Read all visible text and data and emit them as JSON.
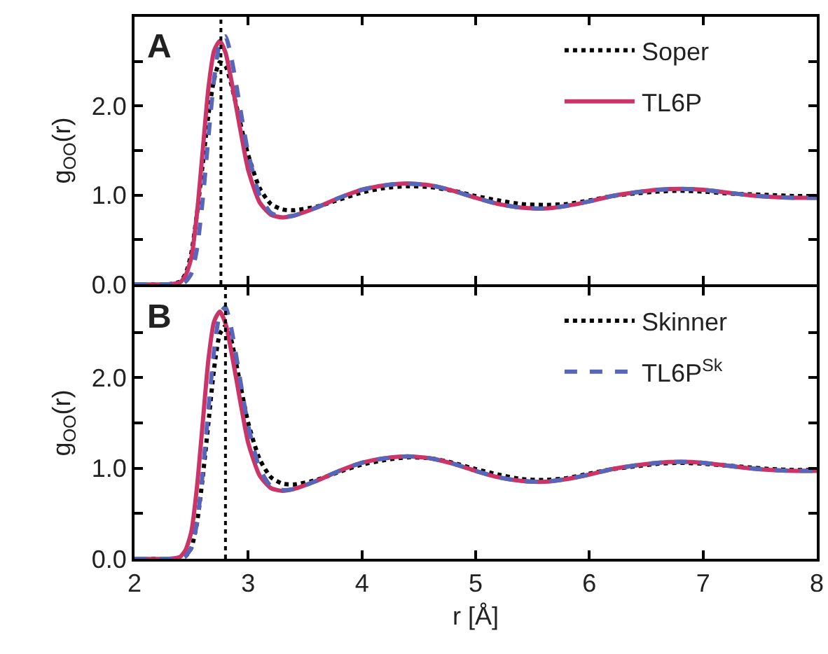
{
  "chart_data": [
    {
      "type": "line",
      "ylabel": "g$_{OO}$(r)",
      "annotations": [
        "A"
      ],
      "legend": "top right",
      "grid": false,
      "marker": "none",
      "tick_labels": "y",
      "x": [
        2.0,
        2.3,
        2.4,
        2.45,
        2.5,
        2.55,
        2.6,
        2.65,
        2.7,
        2.75,
        2.8,
        2.85,
        2.9,
        2.95,
        3.0,
        3.1,
        3.2,
        3.3,
        3.4,
        3.6,
        3.8,
        4.0,
        4.2,
        4.4,
        4.6,
        4.8,
        5.0,
        5.2,
        5.4,
        5.6,
        5.8,
        6.0,
        6.2,
        6.4,
        6.6,
        6.8,
        7.0,
        7.2,
        7.4,
        7.6,
        7.8,
        8.0
      ],
      "xlim": [
        2,
        8
      ],
      "xticks": [
        2,
        3,
        4,
        5,
        6,
        7,
        8
      ],
      "ylim": [
        0,
        3
      ],
      "yticks": [
        {
          "value": 0,
          "label": "0.0"
        },
        {
          "value": 0.5,
          "label": null
        },
        {
          "value": 1,
          "label": "1.0"
        },
        {
          "value": 1.5,
          "label": null
        },
        {
          "value": 2,
          "label": "2.0"
        },
        {
          "value": 2.5,
          "label": null
        },
        {
          "value": 3,
          "label": null
        }
      ],
      "ref_lines": [
        {
          "axis": "x",
          "value": 2.76,
          "label": null,
          "color": "#000000",
          "line_style": "dotted"
        }
      ],
      "series": [
        {
          "name": "Soper",
          "color": "#000000",
          "line_style": "dotted",
          "values": [
            0,
            0,
            0.03,
            0.12,
            0.35,
            0.8,
            1.35,
            1.9,
            2.3,
            2.49,
            2.45,
            2.25,
            1.98,
            1.7,
            1.45,
            1.08,
            0.9,
            0.84,
            0.83,
            0.87,
            0.95,
            1.03,
            1.08,
            1.1,
            1.09,
            1.05,
            0.99,
            0.94,
            0.9,
            0.89,
            0.9,
            0.94,
            0.99,
            1.02,
            1.04,
            1.05,
            1.04,
            1.02,
            1.01,
            1.0,
            0.99,
            0.99
          ]
        },
        {
          "name": "TL6P",
          "color": "#cc3366",
          "line_style": "solid",
          "values": [
            0,
            0,
            0.02,
            0.1,
            0.3,
            0.8,
            1.5,
            2.2,
            2.62,
            2.73,
            2.6,
            2.3,
            1.95,
            1.6,
            1.28,
            0.92,
            0.78,
            0.75,
            0.77,
            0.86,
            0.97,
            1.06,
            1.11,
            1.13,
            1.11,
            1.05,
            0.97,
            0.9,
            0.86,
            0.85,
            0.88,
            0.93,
            0.99,
            1.03,
            1.06,
            1.07,
            1.06,
            1.03,
            1.0,
            0.98,
            0.97,
            0.97
          ]
        },
        {
          "color": "#5566bb",
          "line_style": "dashed",
          "values": [
            0,
            0,
            0,
            0.03,
            0.12,
            0.4,
            0.95,
            1.65,
            2.3,
            2.7,
            2.78,
            2.55,
            2.2,
            1.82,
            1.47,
            1.0,
            0.8,
            0.76,
            0.77,
            0.86,
            0.97,
            1.06,
            1.11,
            1.13,
            1.11,
            1.05,
            0.97,
            0.9,
            0.86,
            0.85,
            0.88,
            0.93,
            0.99,
            1.03,
            1.06,
            1.07,
            1.06,
            1.03,
            1.0,
            0.98,
            0.97,
            0.97
          ]
        }
      ]
    },
    {
      "type": "line",
      "ylabel": "g$_{OO}$(r)",
      "xlabel": "r [Å]",
      "annotations": [
        "B"
      ],
      "legend": "top right",
      "grid": false,
      "marker": "none",
      "x": [
        2.0,
        2.3,
        2.4,
        2.45,
        2.5,
        2.55,
        2.6,
        2.65,
        2.7,
        2.75,
        2.8,
        2.85,
        2.9,
        2.95,
        3.0,
        3.1,
        3.2,
        3.3,
        3.4,
        3.6,
        3.8,
        4.0,
        4.2,
        4.4,
        4.6,
        4.8,
        5.0,
        5.2,
        5.4,
        5.6,
        5.8,
        6.0,
        6.2,
        6.4,
        6.6,
        6.8,
        7.0,
        7.2,
        7.4,
        7.6,
        7.8,
        8.0
      ],
      "xlim": [
        2,
        8
      ],
      "xticks": [
        2,
        3,
        4,
        5,
        6,
        7,
        8
      ],
      "ylim": [
        0,
        3
      ],
      "yticks": [
        {
          "value": 0,
          "label": "0.0"
        },
        {
          "value": 0.5,
          "label": null
        },
        {
          "value": 1,
          "label": "1.0"
        },
        {
          "value": 1.5,
          "label": null
        },
        {
          "value": 2,
          "label": "2.0"
        },
        {
          "value": 2.5,
          "label": null
        },
        {
          "value": 3,
          "label": null
        }
      ],
      "ref_lines": [
        {
          "axis": "x",
          "value": 2.8,
          "label": null,
          "color": "#000000",
          "line_style": "dotted"
        }
      ],
      "series": [
        {
          "name": "Skinner",
          "color": "#000000",
          "line_style": "dotted",
          "values": [
            0,
            0,
            0,
            0.03,
            0.12,
            0.4,
            0.9,
            1.5,
            2.1,
            2.48,
            2.57,
            2.42,
            2.12,
            1.8,
            1.5,
            1.1,
            0.9,
            0.83,
            0.82,
            0.87,
            0.96,
            1.04,
            1.09,
            1.12,
            1.11,
            1.06,
            0.99,
            0.93,
            0.88,
            0.87,
            0.89,
            0.94,
            0.99,
            1.02,
            1.05,
            1.06,
            1.05,
            1.03,
            1.01,
            0.99,
            0.98,
            0.98
          ]
        },
        {
          "color": "#cc3366",
          "line_style": "solid",
          "values": [
            0,
            0,
            0.02,
            0.1,
            0.3,
            0.8,
            1.5,
            2.2,
            2.62,
            2.73,
            2.6,
            2.3,
            1.95,
            1.6,
            1.28,
            0.92,
            0.78,
            0.75,
            0.77,
            0.86,
            0.97,
            1.06,
            1.11,
            1.13,
            1.11,
            1.05,
            0.97,
            0.9,
            0.86,
            0.85,
            0.88,
            0.93,
            0.99,
            1.03,
            1.06,
            1.07,
            1.06,
            1.03,
            1.0,
            0.98,
            0.97,
            0.97
          ]
        },
        {
          "name": "TL6P$^{Sk}$",
          "color": "#5566bb",
          "line_style": "dashed",
          "values": [
            0,
            0,
            0,
            0.03,
            0.12,
            0.4,
            0.95,
            1.65,
            2.3,
            2.7,
            2.78,
            2.55,
            2.2,
            1.82,
            1.47,
            1.0,
            0.8,
            0.76,
            0.77,
            0.86,
            0.97,
            1.06,
            1.11,
            1.13,
            1.11,
            1.05,
            0.97,
            0.9,
            0.86,
            0.85,
            0.88,
            0.93,
            0.99,
            1.03,
            1.06,
            1.07,
            1.06,
            1.03,
            1.0,
            0.98,
            0.97,
            0.97
          ]
        }
      ]
    }
  ]
}
